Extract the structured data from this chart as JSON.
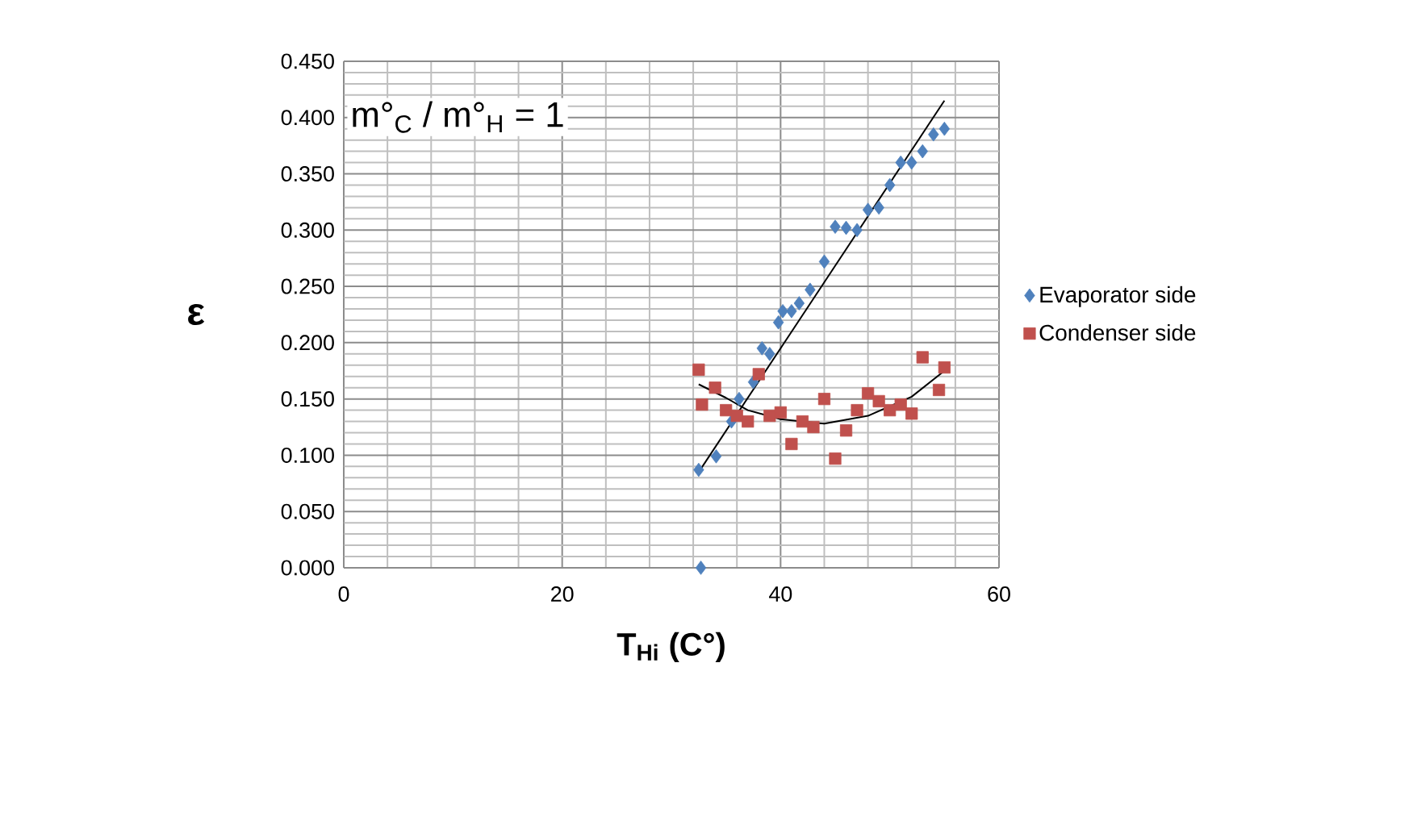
{
  "chart_data": {
    "type": "scatter",
    "xlabel": "T$_{Hi}$ (C°)",
    "ylabel": "ε",
    "annotations": [
      "m°$_{C}$ / m°$_{H}$ = 1"
    ],
    "xlim": [
      0,
      60
    ],
    "xticks": [
      0,
      20,
      40,
      60
    ],
    "ylim": [
      0,
      0.45
    ],
    "yticks": [
      {
        "value": 0,
        "label": "0.000"
      },
      {
        "value": 0.05,
        "label": "0.050"
      },
      {
        "value": 0.1,
        "label": "0.100"
      },
      {
        "value": 0.15,
        "label": "0.150"
      },
      {
        "value": 0.2,
        "label": "0.200"
      },
      {
        "value": 0.25,
        "label": "0.250"
      },
      {
        "value": 0.3,
        "label": "0.300"
      },
      {
        "value": 0.35,
        "label": "0.350"
      },
      {
        "value": 0.4,
        "label": "0.400"
      },
      {
        "value": 0.45,
        "label": "0.450"
      }
    ],
    "grid": true,
    "legend": "right",
    "series": [
      {
        "name": "Evaporator side",
        "color": "#4f81bd",
        "marker": "diamond",
        "x": [
          32.5,
          32.7,
          34.1,
          35.5,
          36.2,
          37.5,
          38.3,
          39,
          39.8,
          40.2,
          41,
          41.7,
          42.7,
          44,
          45,
          46,
          47,
          48,
          49,
          50,
          51,
          52,
          53,
          54,
          55
        ],
        "values": [
          0.087,
          0.0,
          0.099,
          0.13,
          0.15,
          0.165,
          0.195,
          0.19,
          0.218,
          0.228,
          0.228,
          0.235,
          0.247,
          0.272,
          0.303,
          0.302,
          0.3,
          0.318,
          0.32,
          0.34,
          0.36,
          0.36,
          0.37,
          0.385,
          0.39
        ]
      },
      {
        "name": "Condenser side",
        "color": "#c0504d",
        "marker": "square",
        "x": [
          32.5,
          32.8,
          34,
          35,
          36,
          37,
          38,
          39,
          40,
          41,
          42,
          43,
          44,
          45,
          46,
          47,
          48,
          49,
          50,
          51,
          52,
          53,
          54.5,
          55
        ],
        "values": [
          0.176,
          0.145,
          0.16,
          0.14,
          0.135,
          0.13,
          0.172,
          0.135,
          0.138,
          0.11,
          0.13,
          0.125,
          0.15,
          0.097,
          0.122,
          0.14,
          0.155,
          0.148,
          0.14,
          0.145,
          0.137,
          0.187,
          0.158,
          0.178
        ]
      },
      {
        "type": "line",
        "color": "#000000",
        "marker": "none",
        "x": [
          32.5,
          55
        ],
        "values": [
          0.085,
          0.415
        ]
      },
      {
        "type": "line",
        "color": "#000000",
        "marker": "none",
        "x": [
          32.5,
          35,
          37,
          40,
          44,
          48,
          52,
          55
        ],
        "values": [
          0.163,
          0.151,
          0.14,
          0.132,
          0.128,
          0.135,
          0.152,
          0.175
        ]
      }
    ]
  }
}
